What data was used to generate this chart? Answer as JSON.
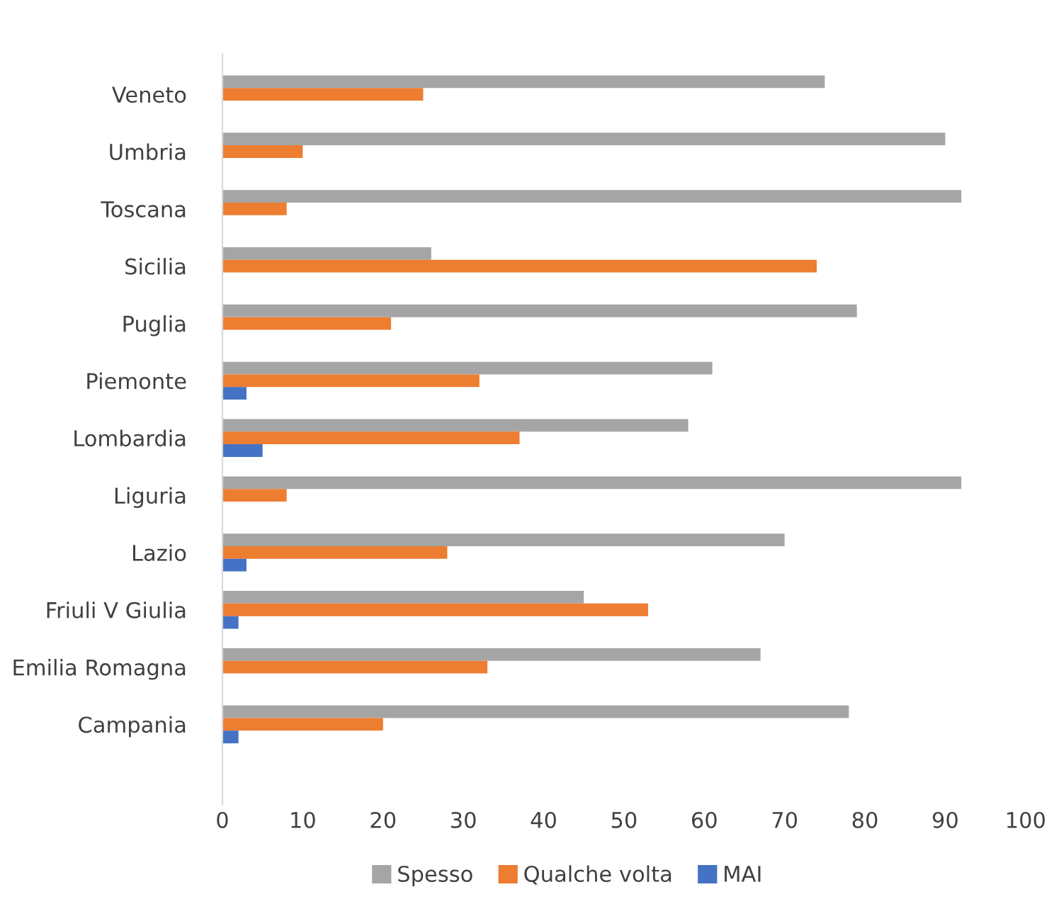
{
  "chart_data": {
    "type": "bar",
    "orientation": "horizontal",
    "categories": [
      "Veneto",
      "Umbria",
      "Toscana",
      "Sicilia",
      "Puglia",
      "Piemonte",
      "Lombardia",
      "Liguria",
      "Lazio",
      "Friuli V Giulia",
      "Emilia Romagna",
      "Campania"
    ],
    "series": [
      {
        "name": "Spesso",
        "color": "#a5a5a5",
        "values": [
          75,
          90,
          92,
          26,
          79,
          61,
          58,
          92,
          70,
          45,
          67,
          78
        ]
      },
      {
        "name": "Qualche volta",
        "color": "#ed7d31",
        "values": [
          25,
          10,
          8,
          74,
          21,
          32,
          37,
          8,
          28,
          53,
          33,
          20
        ]
      },
      {
        "name": "MAI",
        "color": "#4472c4",
        "values": [
          null,
          null,
          null,
          null,
          null,
          3,
          5,
          null,
          3,
          2,
          null,
          2
        ]
      }
    ],
    "xlim": [
      0,
      100
    ],
    "xticks": [
      0,
      10,
      20,
      30,
      40,
      50,
      60,
      70,
      80,
      90,
      100
    ],
    "grid": false,
    "legend": "bottom"
  }
}
